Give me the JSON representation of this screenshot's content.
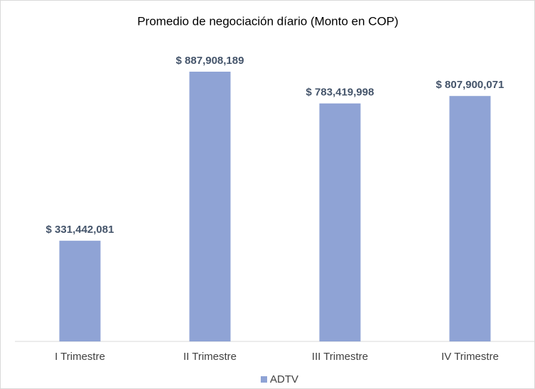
{
  "chart_data": {
    "type": "bar",
    "title": "Promedio de negociación díario (Monto en COP)",
    "categories": [
      "I Trimestre",
      "II Trimestre",
      "III Trimestre",
      "IV Trimestre"
    ],
    "series": [
      {
        "name": "ADTV",
        "color": "#8fa3d5",
        "values": [
          331442081,
          887908189,
          783419998,
          807900071
        ],
        "value_labels": [
          "$ 331,442,081",
          "$ 887,908,189",
          "$ 783,419,998",
          "$ 807,900,071"
        ]
      }
    ],
    "ylim": [
      0,
      1000000000
    ],
    "legend": "bottom"
  }
}
